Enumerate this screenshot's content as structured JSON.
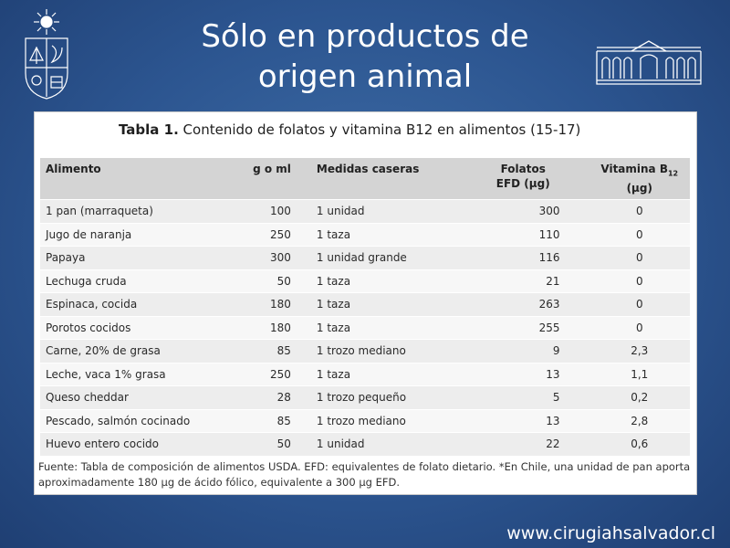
{
  "slide": {
    "title_line1": "Sólo en productos de",
    "title_line2": "origen animal",
    "website": "www.cirugiahsalvador.cl"
  },
  "table": {
    "caption_bold": "Tabla 1.",
    "caption_text": " Contenido de folatos y vitamina B12 en alimentos (15-17)",
    "headers": {
      "food": "Alimento",
      "gml": "g o ml",
      "measure": "Medidas caseras",
      "folate_line1": "Folatos",
      "folate_line2": "EFD (µg)",
      "b12_prefix": "Vitamina B",
      "b12_sub": "12",
      "b12_line2": "(µg)"
    },
    "rows": [
      {
        "food": "1 pan (marraqueta)",
        "gml": "100",
        "measure": "1 unidad",
        "folate": "300",
        "b12": "0"
      },
      {
        "food": "Jugo de naranja",
        "gml": "250",
        "measure": "1 taza",
        "folate": "110",
        "b12": "0"
      },
      {
        "food": "Papaya",
        "gml": "300",
        "measure": "1 unidad grande",
        "folate": "116",
        "b12": "0"
      },
      {
        "food": "Lechuga cruda",
        "gml": "50",
        "measure": "1 taza",
        "folate": "21",
        "b12": "0"
      },
      {
        "food": "Espinaca, cocida",
        "gml": "180",
        "measure": "1 taza",
        "folate": "263",
        "b12": "0"
      },
      {
        "food": "Porotos cocidos",
        "gml": "180",
        "measure": "1 taza",
        "folate": "255",
        "b12": "0"
      },
      {
        "food": "Carne, 20% de grasa",
        "gml": "85",
        "measure": "1 trozo mediano",
        "folate": "9",
        "b12": "2,3"
      },
      {
        "food": "Leche, vaca 1% grasa",
        "gml": "250",
        "measure": "1 taza",
        "folate": "13",
        "b12": "1,1"
      },
      {
        "food": "Queso cheddar",
        "gml": "28",
        "measure": "1 trozo pequeño",
        "folate": "5",
        "b12": "0,2"
      },
      {
        "food": "Pescado, salmón cocinado",
        "gml": "85",
        "measure": "1 trozo mediano",
        "folate": "13",
        "b12": "2,8"
      },
      {
        "food": "Huevo entero cocido",
        "gml": "50",
        "measure": "1 unidad",
        "folate": "22",
        "b12": "0,6"
      }
    ],
    "footnote_line1": "Fuente: Tabla de composición de alimentos USDA. EFD: equivalentes de folato dietario. *En Chile, una unidad de pan aporta",
    "footnote_line2": "aproximadamente 180 µg de ácido fólico, equivalente a 300 µg EFD."
  },
  "colors": {
    "background": "#2c5590",
    "header_row": "#d4d4d4",
    "row_odd": "#ededed",
    "row_even": "#f7f7f7"
  },
  "icons": {
    "left_logo": "university-crest-icon",
    "right_logo": "building-facade-icon"
  }
}
